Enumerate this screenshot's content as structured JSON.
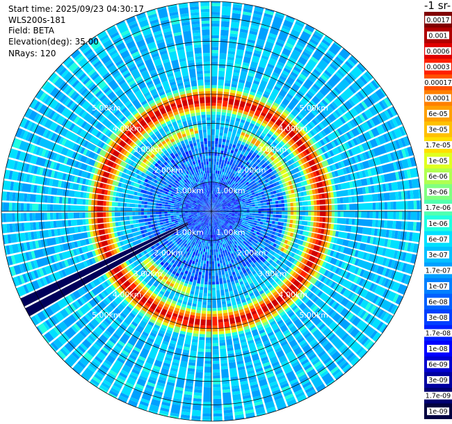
{
  "info": {
    "start_time": "Start time: 2025/09/23 04:30:17",
    "instrument": "WLS200s-181",
    "field": "Field: BETA",
    "elevation": "Elevation(deg): 35.00",
    "nrays": "NRays: 120"
  },
  "colorbar": {
    "title": "-1 sr-",
    "labels": [
      "0.0017",
      "0.001",
      "0.0006",
      "0.0003",
      "0.00017",
      "0.0001",
      "6e-05",
      "3e-05",
      "1.7e-05",
      "1e-05",
      "6e-06",
      "3e-06",
      "1.7e-06",
      "1e-06",
      "6e-07",
      "3e-07",
      "1.7e-07",
      "1e-07",
      "6e-08",
      "3e-08",
      "1.7e-08",
      "1e-08",
      "6e-09",
      "3e-09",
      "1.7e-09",
      "1e-09"
    ],
    "colors": [
      "#800000",
      "#b00000",
      "#e00000",
      "#ff2000",
      "#ff5000",
      "#ff8000",
      "#ffa000",
      "#ffc000",
      "#ffe000",
      "#e0ff20",
      "#b0ff50",
      "#80ff80",
      "#50ffb0",
      "#20ffe0",
      "#00e0ff",
      "#00c0ff",
      "#00a0ff",
      "#0080ff",
      "#0060ff",
      "#0040ff",
      "#0020ff",
      "#0000ff",
      "#0000d0",
      "#0000a0",
      "#000070",
      "#000040"
    ]
  },
  "chart_data": {
    "type": "heatmap",
    "projection": "polar",
    "n_rays": 120,
    "range_ring_labels": [
      "1.00km",
      "2.00km",
      "3.00km",
      "4.00km",
      "5.00km"
    ],
    "range_rings_km": [
      1,
      2,
      3,
      4,
      5
    ],
    "max_range_km": 7.2,
    "aerosol_layer_range_km": [
      3.5,
      4.1
    ],
    "inner_layer_range_km": [
      2.7,
      2.9
    ],
    "beam_block_azimuth_deg": 244,
    "grid": true
  }
}
